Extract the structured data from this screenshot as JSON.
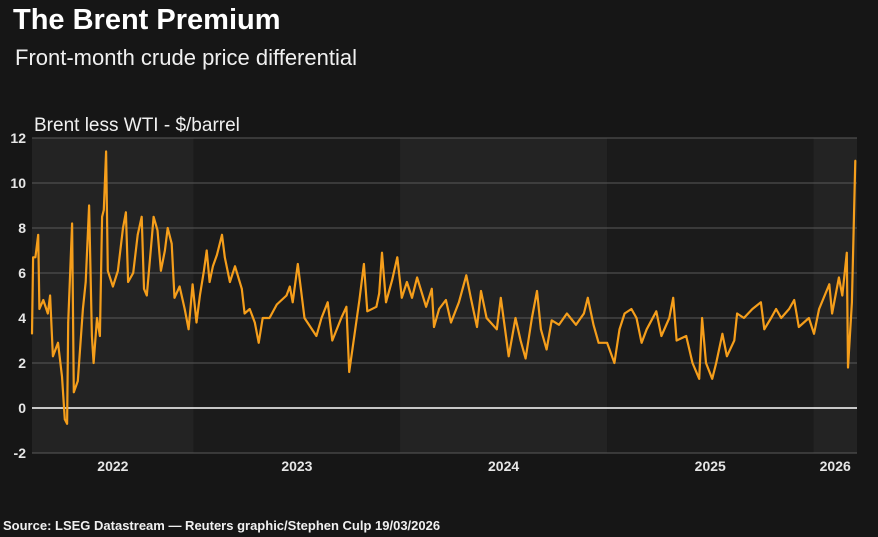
{
  "header": {
    "title": "The Brent Premium",
    "subtitle": "Front-month crude price differential"
  },
  "footer": {
    "source": "Source: LSEG Datastream — Reuters graphic/Stephen Culp 19/03/2026"
  },
  "chart_data": {
    "type": "line",
    "title": "The Brent Premium",
    "subtitle": "Front-month crude price differential",
    "ylabel": "Brent less WTI - $/barrel",
    "xlabel": "",
    "ylim": [
      -2,
      12
    ],
    "yticks": [
      -2,
      0,
      2,
      4,
      6,
      8,
      10,
      12
    ],
    "xlim": [
      "2022-03-21",
      "2026-03-19"
    ],
    "xticks": [
      "2022",
      "2023",
      "2024",
      "2025",
      "2026"
    ],
    "grid": true,
    "zero_line": true,
    "alternating_year_bands": true,
    "colors": {
      "line": "#f59e1b",
      "background": "#161616",
      "band_light": "#232323",
      "band_dark": "#1b1b1b",
      "grid": "#5a5a5a",
      "zero": "#ffffff"
    },
    "series": [
      {
        "points": [
          [
            "2022-03-21",
            3.3
          ],
          [
            "2022-03-23",
            6.7
          ],
          [
            "2022-03-27",
            6.7
          ],
          [
            "2022-04-01",
            7.7
          ],
          [
            "2022-04-03",
            4.4
          ],
          [
            "2022-04-10",
            4.8
          ],
          [
            "2022-04-18",
            4.2
          ],
          [
            "2022-04-22",
            5.0
          ],
          [
            "2022-04-27",
            2.3
          ],
          [
            "2022-05-06",
            2.9
          ],
          [
            "2022-05-13",
            1.4
          ],
          [
            "2022-05-18",
            -0.5
          ],
          [
            "2022-05-22",
            -0.7
          ],
          [
            "2022-05-24",
            3.8
          ],
          [
            "2022-05-31",
            8.2
          ],
          [
            "2022-06-03",
            0.7
          ],
          [
            "2022-06-10",
            1.2
          ],
          [
            "2022-06-19",
            4.4
          ],
          [
            "2022-06-24",
            5.6
          ],
          [
            "2022-06-30",
            9.0
          ],
          [
            "2022-07-05",
            3.2
          ],
          [
            "2022-07-08",
            2.0
          ],
          [
            "2022-07-14",
            4.0
          ],
          [
            "2022-07-19",
            3.2
          ],
          [
            "2022-07-23",
            8.5
          ],
          [
            "2022-07-26",
            8.8
          ],
          [
            "2022-07-30",
            11.4
          ],
          [
            "2022-08-02",
            6.1
          ],
          [
            "2022-08-11",
            5.4
          ],
          [
            "2022-08-20",
            6.1
          ],
          [
            "2022-08-29",
            8.0
          ],
          [
            "2022-09-03",
            8.7
          ],
          [
            "2022-09-07",
            5.6
          ],
          [
            "2022-09-16",
            6.0
          ],
          [
            "2022-09-24",
            7.7
          ],
          [
            "2022-10-01",
            8.5
          ],
          [
            "2022-10-05",
            5.3
          ],
          [
            "2022-10-10",
            5.0
          ],
          [
            "2022-10-19",
            7.6
          ],
          [
            "2022-10-22",
            8.5
          ],
          [
            "2022-10-29",
            7.9
          ],
          [
            "2022-11-04",
            6.1
          ],
          [
            "2022-11-11",
            7.0
          ],
          [
            "2022-11-16",
            8.0
          ],
          [
            "2022-11-23",
            7.3
          ],
          [
            "2022-11-28",
            4.9
          ],
          [
            "2022-12-07",
            5.4
          ],
          [
            "2022-12-16",
            4.4
          ],
          [
            "2022-12-23",
            3.5
          ],
          [
            "2022-12-30",
            5.5
          ],
          [
            "2023-01-06",
            3.8
          ],
          [
            "2023-01-12",
            5.0
          ],
          [
            "2023-01-19",
            6.1
          ],
          [
            "2023-01-24",
            7.0
          ],
          [
            "2023-01-29",
            5.6
          ],
          [
            "2023-02-04",
            6.3
          ],
          [
            "2023-02-11",
            6.8
          ],
          [
            "2023-02-20",
            7.7
          ],
          [
            "2023-02-25",
            6.7
          ],
          [
            "2023-03-06",
            5.6
          ],
          [
            "2023-03-15",
            6.3
          ],
          [
            "2023-03-27",
            5.3
          ],
          [
            "2023-04-01",
            4.2
          ],
          [
            "2023-04-10",
            4.4
          ],
          [
            "2023-04-19",
            3.8
          ],
          [
            "2023-04-26",
            2.9
          ],
          [
            "2023-05-03",
            4.0
          ],
          [
            "2023-05-15",
            4.0
          ],
          [
            "2023-05-28",
            4.6
          ],
          [
            "2023-06-14",
            5.0
          ],
          [
            "2023-06-20",
            5.4
          ],
          [
            "2023-06-25",
            4.7
          ],
          [
            "2023-07-04",
            6.4
          ],
          [
            "2023-07-16",
            4.0
          ],
          [
            "2023-08-06",
            3.2
          ],
          [
            "2023-08-15",
            4.0
          ],
          [
            "2023-08-26",
            4.7
          ],
          [
            "2023-09-03",
            3.0
          ],
          [
            "2023-09-19",
            4.0
          ],
          [
            "2023-09-28",
            4.5
          ],
          [
            "2023-10-03",
            1.6
          ],
          [
            "2023-10-12",
            3.2
          ],
          [
            "2023-10-21",
            4.8
          ],
          [
            "2023-10-29",
            6.4
          ],
          [
            "2023-11-04",
            4.3
          ],
          [
            "2023-11-20",
            4.5
          ],
          [
            "2023-11-25",
            5.1
          ],
          [
            "2023-11-30",
            6.9
          ],
          [
            "2023-12-07",
            4.7
          ],
          [
            "2023-12-18",
            5.7
          ],
          [
            "2023-12-27",
            6.7
          ],
          [
            "2024-01-04",
            4.9
          ],
          [
            "2024-01-13",
            5.6
          ],
          [
            "2024-01-22",
            4.9
          ],
          [
            "2024-01-31",
            5.8
          ],
          [
            "2024-02-16",
            4.5
          ],
          [
            "2024-02-26",
            5.3
          ],
          [
            "2024-03-01",
            3.6
          ],
          [
            "2024-03-10",
            4.4
          ],
          [
            "2024-03-22",
            4.8
          ],
          [
            "2024-03-31",
            3.8
          ],
          [
            "2024-04-14",
            4.7
          ],
          [
            "2024-04-27",
            5.9
          ],
          [
            "2024-05-05",
            4.9
          ],
          [
            "2024-05-16",
            3.6
          ],
          [
            "2024-05-23",
            5.2
          ],
          [
            "2024-06-02",
            4.0
          ],
          [
            "2024-06-20",
            3.5
          ],
          [
            "2024-06-27",
            4.9
          ],
          [
            "2024-07-11",
            2.3
          ],
          [
            "2024-07-23",
            4.0
          ],
          [
            "2024-08-01",
            3.0
          ],
          [
            "2024-08-10",
            2.2
          ],
          [
            "2024-08-21",
            4.0
          ],
          [
            "2024-08-30",
            5.2
          ],
          [
            "2024-09-06",
            3.5
          ],
          [
            "2024-09-16",
            2.6
          ],
          [
            "2024-09-25",
            3.9
          ],
          [
            "2024-10-08",
            3.7
          ],
          [
            "2024-10-22",
            4.2
          ],
          [
            "2024-11-07",
            3.7
          ],
          [
            "2024-11-21",
            4.2
          ],
          [
            "2024-11-28",
            4.9
          ],
          [
            "2024-12-08",
            3.7
          ],
          [
            "2024-12-17",
            2.9
          ],
          [
            "2025-01-01",
            2.9
          ],
          [
            "2025-01-14",
            2.0
          ],
          [
            "2025-01-23",
            3.5
          ],
          [
            "2025-02-01",
            4.2
          ],
          [
            "2025-02-13",
            4.4
          ],
          [
            "2025-02-22",
            4.0
          ],
          [
            "2025-03-03",
            2.9
          ],
          [
            "2025-03-12",
            3.5
          ],
          [
            "2025-03-29",
            4.3
          ],
          [
            "2025-04-07",
            3.2
          ],
          [
            "2025-04-21",
            4.0
          ],
          [
            "2025-04-28",
            4.9
          ],
          [
            "2025-05-04",
            3.0
          ],
          [
            "2025-05-21",
            3.2
          ],
          [
            "2025-06-01",
            2.0
          ],
          [
            "2025-06-13",
            1.3
          ],
          [
            "2025-06-18",
            4.0
          ],
          [
            "2025-06-25",
            2.0
          ],
          [
            "2025-07-06",
            1.3
          ],
          [
            "2025-07-13",
            2.0
          ],
          [
            "2025-07-24",
            3.3
          ],
          [
            "2025-08-01",
            2.3
          ],
          [
            "2025-08-14",
            3.0
          ],
          [
            "2025-08-19",
            4.2
          ],
          [
            "2025-08-31",
            4.0
          ],
          [
            "2025-09-15",
            4.4
          ],
          [
            "2025-09-30",
            4.7
          ],
          [
            "2025-10-06",
            3.5
          ],
          [
            "2025-10-18",
            4.0
          ],
          [
            "2025-10-27",
            4.4
          ],
          [
            "2025-11-05",
            4.0
          ],
          [
            "2025-11-19",
            4.4
          ],
          [
            "2025-11-28",
            4.8
          ],
          [
            "2025-12-06",
            3.6
          ],
          [
            "2025-12-24",
            4.0
          ],
          [
            "2026-01-02",
            3.3
          ],
          [
            "2026-01-11",
            4.4
          ],
          [
            "2026-01-29",
            5.5
          ],
          [
            "2026-02-03",
            4.2
          ],
          [
            "2026-02-15",
            5.8
          ],
          [
            "2026-02-21",
            5.0
          ],
          [
            "2026-03-01",
            6.9
          ],
          [
            "2026-03-03",
            1.8
          ],
          [
            "2026-03-10",
            4.7
          ],
          [
            "2026-03-16",
            11.0
          ]
        ]
      }
    ]
  }
}
